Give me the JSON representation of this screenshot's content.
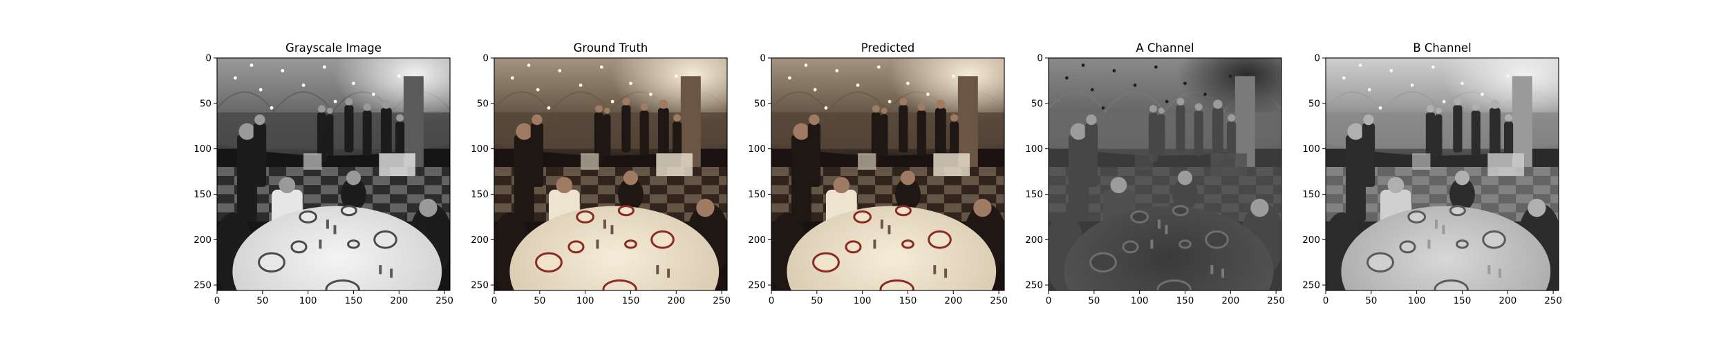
{
  "figure": {
    "panels": [
      {
        "title": "Grayscale Image",
        "tone": "gray",
        "xticks": [
          "0",
          "50",
          "100",
          "150",
          "200",
          "250"
        ],
        "yticks": [
          "0",
          "50",
          "100",
          "150",
          "200",
          "250"
        ]
      },
      {
        "title": "Ground Truth",
        "tone": "warm",
        "xticks": [
          "0",
          "50",
          "100",
          "150",
          "200",
          "250"
        ],
        "yticks": [
          "0",
          "50",
          "100",
          "150",
          "200",
          "250"
        ]
      },
      {
        "title": "Predicted",
        "tone": "warm",
        "xticks": [
          "0",
          "50",
          "100",
          "150",
          "200",
          "250"
        ],
        "yticks": [
          "0",
          "50",
          "100",
          "150",
          "200",
          "250"
        ]
      },
      {
        "title": "A Channel",
        "tone": "achan",
        "xticks": [
          "0",
          "50",
          "100",
          "150",
          "200",
          "250"
        ],
        "yticks": [
          "0",
          "50",
          "100",
          "150",
          "200",
          "250"
        ]
      },
      {
        "title": "B Channel",
        "tone": "bchan",
        "xticks": [
          "0",
          "50",
          "100",
          "150",
          "200",
          "250"
        ],
        "yticks": [
          "0",
          "50",
          "100",
          "150",
          "200",
          "250"
        ]
      }
    ],
    "tick_values": [
      0,
      50,
      100,
      150,
      200,
      250
    ],
    "image_extent": 256
  }
}
